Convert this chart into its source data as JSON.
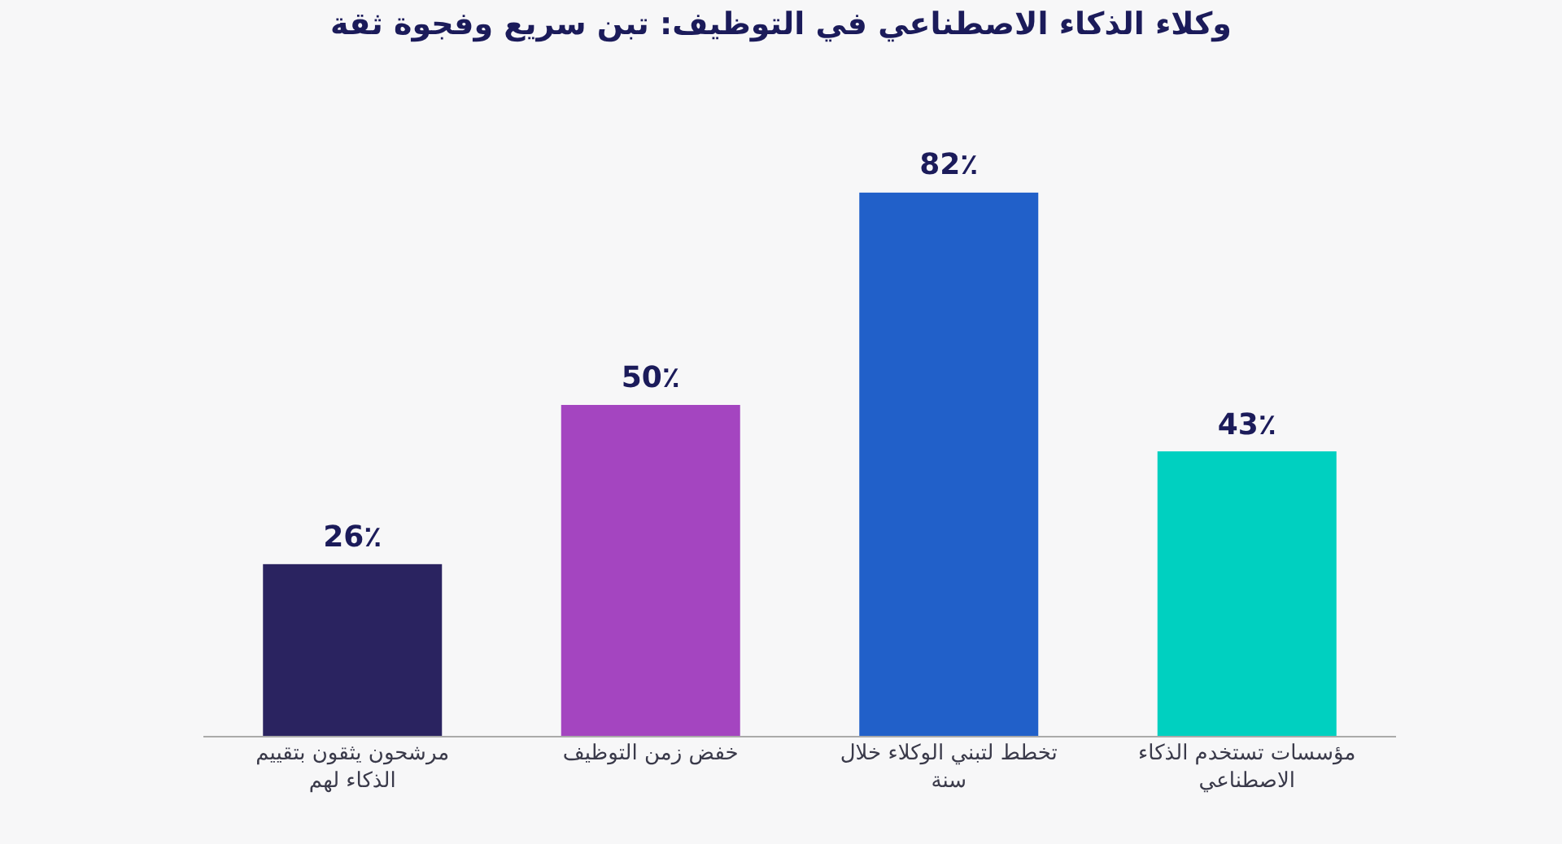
{
  "chart_data": {
    "type": "bar",
    "title": "وكلاء الذكاء الاصطناعي في التوظيف: تبن سريع وفجوة ثقة",
    "categories": [
      "مرشحون يثقون بتقييم الذكاء لهم",
      "خفض زمن التوظيف",
      "تخطط لتبني الوكلاء خلال سنة",
      "مؤسسات تستخدم الذكاء الاصطناعي"
    ],
    "values": [
      26,
      50,
      82,
      43
    ],
    "colors": [
      "#2a2360",
      "#a445c0",
      "#2160c9",
      "#00d0c0"
    ],
    "value_labels": [
      "26٪",
      "50٪",
      "82٪",
      "43٪"
    ]
  }
}
